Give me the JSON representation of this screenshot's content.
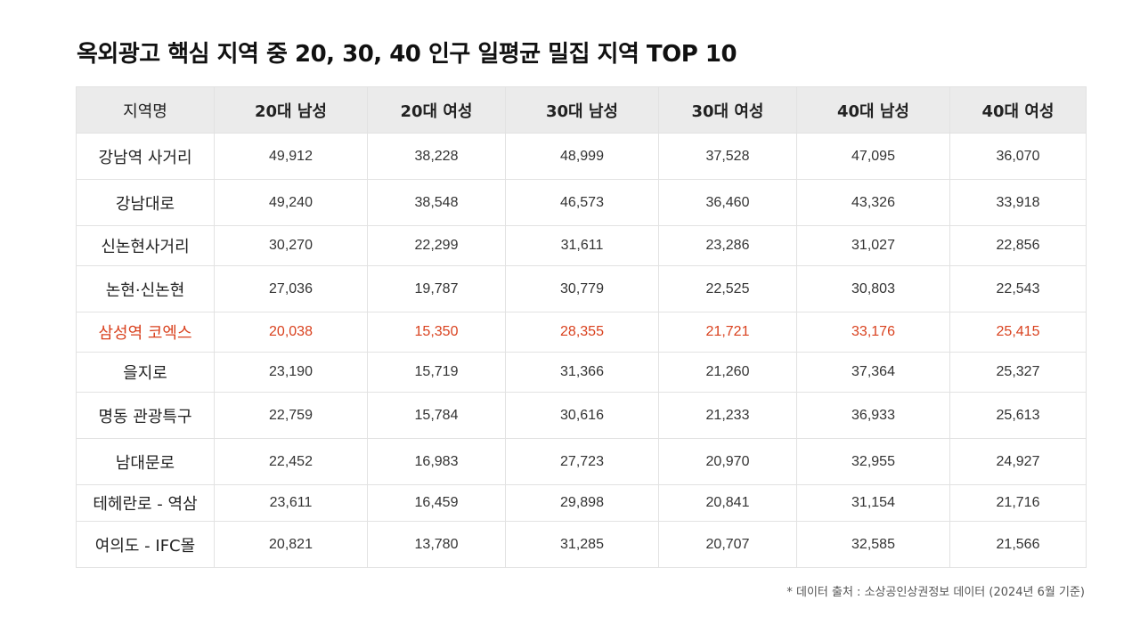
{
  "title": "옥외광고 핵심 지역 중 20, 30, 40 인구 일평균 밀집 지역 TOP 10",
  "table": {
    "headers": [
      "지역명",
      "20대 남성",
      "20대 여성",
      "30대 남성",
      "30대 여성",
      "40대 남성",
      "40대 여성"
    ],
    "rows": [
      {
        "region": "강남역 사거리",
        "values": [
          "49,912",
          "38,228",
          "48,999",
          "37,528",
          "47,095",
          "36,070"
        ],
        "highlight": false
      },
      {
        "region": "강남대로",
        "values": [
          "49,240",
          "38,548",
          "46,573",
          "36,460",
          "43,326",
          "33,918"
        ],
        "highlight": false
      },
      {
        "region": "신논현사거리",
        "values": [
          "30,270",
          "22,299",
          "31,611",
          "23,286",
          "31,027",
          "22,856"
        ],
        "highlight": false
      },
      {
        "region": "논현·신논현",
        "values": [
          "27,036",
          "19,787",
          "30,779",
          "22,525",
          "30,803",
          "22,543"
        ],
        "highlight": false
      },
      {
        "region": "삼성역 코엑스",
        "values": [
          "20,038",
          "15,350",
          "28,355",
          "21,721",
          "33,176",
          "25,415"
        ],
        "highlight": true
      },
      {
        "region": "을지로",
        "values": [
          "23,190",
          "15,719",
          "31,366",
          "21,260",
          "37,364",
          "25,327"
        ],
        "highlight": false
      },
      {
        "region": "명동 관광특구",
        "values": [
          "22,759",
          "15,784",
          "30,616",
          "21,233",
          "36,933",
          "25,613"
        ],
        "highlight": false
      },
      {
        "region": "남대문로",
        "values": [
          "22,452",
          "16,983",
          "27,723",
          "20,970",
          "32,955",
          "24,927"
        ],
        "highlight": false
      },
      {
        "region": "테헤란로 - 역삼",
        "values": [
          "23,611",
          "16,459",
          "29,898",
          "20,841",
          "31,154",
          "21,716"
        ],
        "highlight": false
      },
      {
        "region": "여의도 - IFC몰",
        "values": [
          "20,821",
          "13,780",
          "31,285",
          "20,707",
          "32,585",
          "21,566"
        ],
        "highlight": false
      }
    ]
  },
  "footnote": "* 데이터 출처 :  소상공인상권정보 데이터 (2024년 6월 기준)",
  "colors": {
    "highlight": "#d9411e",
    "header_bg": "#ebebeb",
    "border": "#e2e2e2"
  }
}
